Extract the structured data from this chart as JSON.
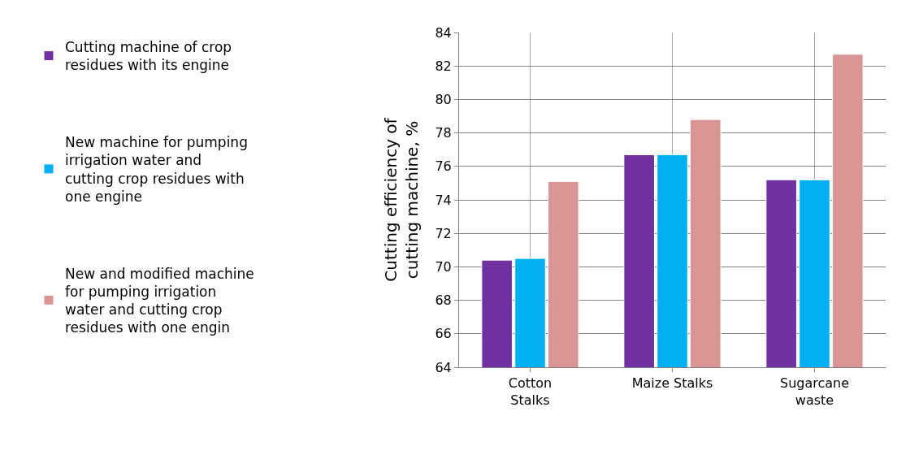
{
  "chart_data": {
    "type": "bar",
    "ylabel": "Cutting efficiency of cutting machine, %",
    "categories": [
      "Cotton Stalks",
      "Maize Stalks",
      "Sugarcane waste"
    ],
    "series": [
      {
        "name": "Cutting machine of crop residues with its engine",
        "color": "#7030a0",
        "values": [
          70.4,
          76.7,
          75.2
        ]
      },
      {
        "name": "New machine for pumping irrigation water and cutting crop residues with one engine",
        "color": "#00b0f0",
        "values": [
          70.5,
          76.7,
          75.2
        ]
      },
      {
        "name": "New and modified machine for pumping irrigation water and cutting crop residues with one engin",
        "color": "#d99594",
        "values": [
          75.1,
          78.8,
          82.7
        ]
      }
    ],
    "ylim": [
      64,
      84
    ],
    "yticks": [
      64,
      66,
      68,
      70,
      72,
      74,
      76,
      78,
      80,
      82,
      84
    ],
    "grid": true,
    "legend": "left"
  }
}
